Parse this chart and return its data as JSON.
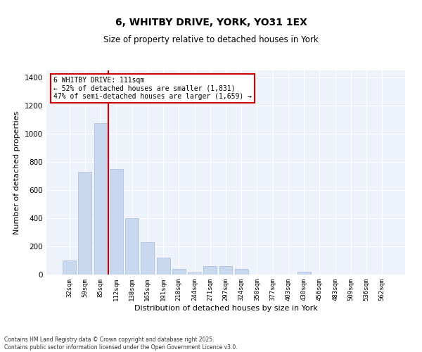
{
  "title1": "6, WHITBY DRIVE, YORK, YO31 1EX",
  "title2": "Size of property relative to detached houses in York",
  "xlabel": "Distribution of detached houses by size in York",
  "ylabel": "Number of detached properties",
  "categories": [
    "32sqm",
    "59sqm",
    "85sqm",
    "112sqm",
    "138sqm",
    "165sqm",
    "191sqm",
    "218sqm",
    "244sqm",
    "271sqm",
    "297sqm",
    "324sqm",
    "350sqm",
    "377sqm",
    "403sqm",
    "430sqm",
    "456sqm",
    "483sqm",
    "509sqm",
    "536sqm",
    "562sqm"
  ],
  "values": [
    100,
    730,
    1075,
    750,
    400,
    230,
    120,
    40,
    15,
    60,
    60,
    40,
    0,
    0,
    0,
    20,
    0,
    0,
    0,
    0,
    0
  ],
  "bar_color": "#c8d8ee",
  "bar_edge_color": "#a8bcd8",
  "vline_color": "#cc0000",
  "vline_pos": 2.5,
  "annotation_text": "6 WHITBY DRIVE: 111sqm\n← 52% of detached houses are smaller (1,831)\n47% of semi-detached houses are larger (1,659) →",
  "annotation_box_color": "#cc0000",
  "ylim": [
    0,
    1450
  ],
  "yticks": [
    0,
    200,
    400,
    600,
    800,
    1000,
    1200,
    1400
  ],
  "background_color": "#eef2fb",
  "footer1": "Contains HM Land Registry data © Crown copyright and database right 2025.",
  "footer2": "Contains public sector information licensed under the Open Government Licence v3.0."
}
